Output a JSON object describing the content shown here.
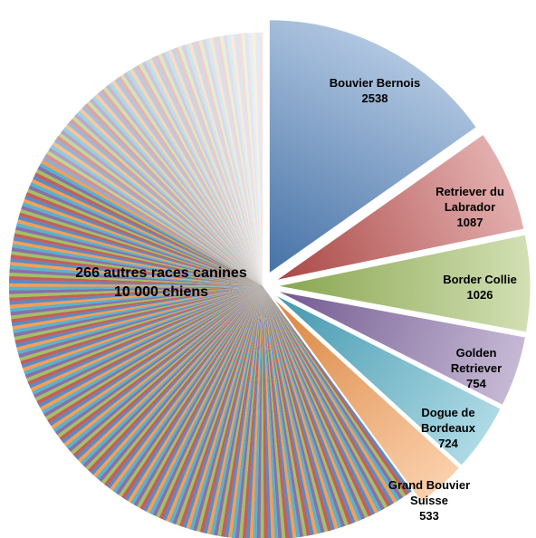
{
  "chart_data": {
    "type": "pie",
    "title": "",
    "slices": [
      {
        "label_lines": [
          "Bouvier Bernois",
          "2538"
        ],
        "name": "Bouvier Bernois",
        "value": 2538,
        "color": "#4f81bd",
        "exploded": true
      },
      {
        "label_lines": [
          "Retriever du",
          "Labrador",
          "1087"
        ],
        "name": "Retriever du Labrador",
        "value": 1087,
        "color": "#c0504d",
        "exploded": true
      },
      {
        "label_lines": [
          "Border Collie",
          "1026"
        ],
        "name": "Border Collie",
        "value": 1026,
        "color": "#9bbb59",
        "exploded": true
      },
      {
        "label_lines": [
          "Golden",
          "Retriever",
          "754"
        ],
        "name": "Golden Retriever",
        "value": 754,
        "color": "#8064a2",
        "exploded": true
      },
      {
        "label_lines": [
          "Dogue de",
          "Bordeaux",
          "724"
        ],
        "name": "Dogue de Bordeaux",
        "value": 724,
        "color": "#4bacc6",
        "exploded": true
      },
      {
        "label_lines": [
          "Grand Bouvier",
          "Suisse",
          "533"
        ],
        "name": "Grand Bouvier Suisse",
        "value": 533,
        "color": "#f79646",
        "exploded": true
      },
      {
        "label_lines": [
          "266 autres races canines",
          "10 000 chiens"
        ],
        "name": "266 autres races canines",
        "value": 10000,
        "count": 266,
        "color": "multi",
        "exploded": false
      }
    ],
    "palette": [
      "#4f81bd",
      "#c0504d",
      "#9bbb59",
      "#8064a2",
      "#4bacc6",
      "#f79646"
    ],
    "legend": "none"
  }
}
